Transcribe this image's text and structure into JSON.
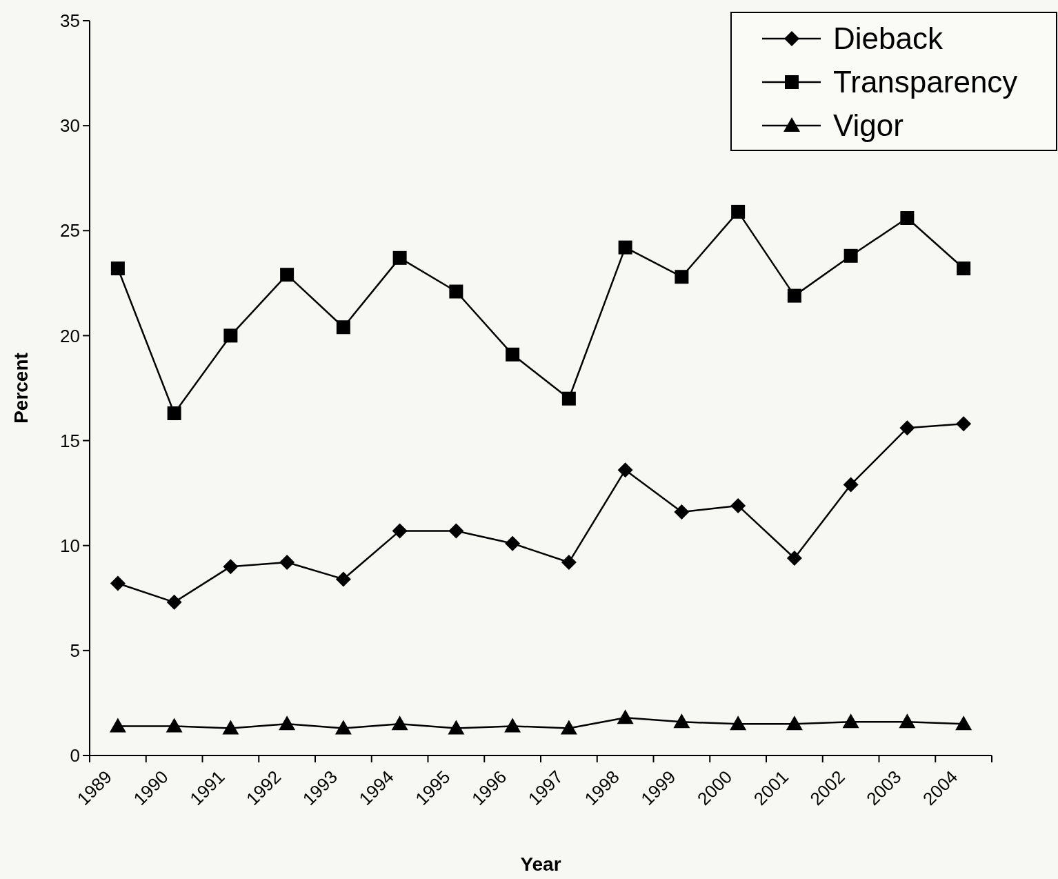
{
  "chart_data": {
    "type": "line",
    "xlabel": "Year",
    "ylabel": "Percent",
    "categories": [
      "1989",
      "1990",
      "1991",
      "1992",
      "1993",
      "1994",
      "1995",
      "1996",
      "1997",
      "1998",
      "1999",
      "2000",
      "2001",
      "2002",
      "2003",
      "2004"
    ],
    "series": [
      {
        "name": "Dieback",
        "color": "#000000",
        "marker": "diamond",
        "values": [
          8.2,
          7.3,
          9.0,
          9.2,
          8.4,
          10.7,
          10.7,
          10.1,
          9.2,
          13.6,
          11.6,
          11.9,
          9.4,
          12.9,
          15.6,
          15.8
        ]
      },
      {
        "name": "Transparency",
        "color": "#000000",
        "marker": "square",
        "values": [
          23.2,
          16.3,
          20.0,
          22.9,
          20.4,
          23.7,
          22.1,
          19.1,
          17.0,
          24.2,
          22.8,
          25.9,
          21.9,
          23.8,
          25.6,
          23.2
        ]
      },
      {
        "name": "Vigor",
        "color": "#000000",
        "marker": "triangle",
        "values": [
          1.4,
          1.4,
          1.3,
          1.5,
          1.3,
          1.5,
          1.3,
          1.4,
          1.3,
          1.8,
          1.6,
          1.5,
          1.5,
          1.6,
          1.6,
          1.5
        ]
      }
    ],
    "ylim": [
      0,
      35
    ],
    "yticks": [
      0,
      5,
      10,
      15,
      20,
      25,
      30,
      35
    ],
    "legend": "top right",
    "grid": false,
    "line_style": "solid"
  }
}
